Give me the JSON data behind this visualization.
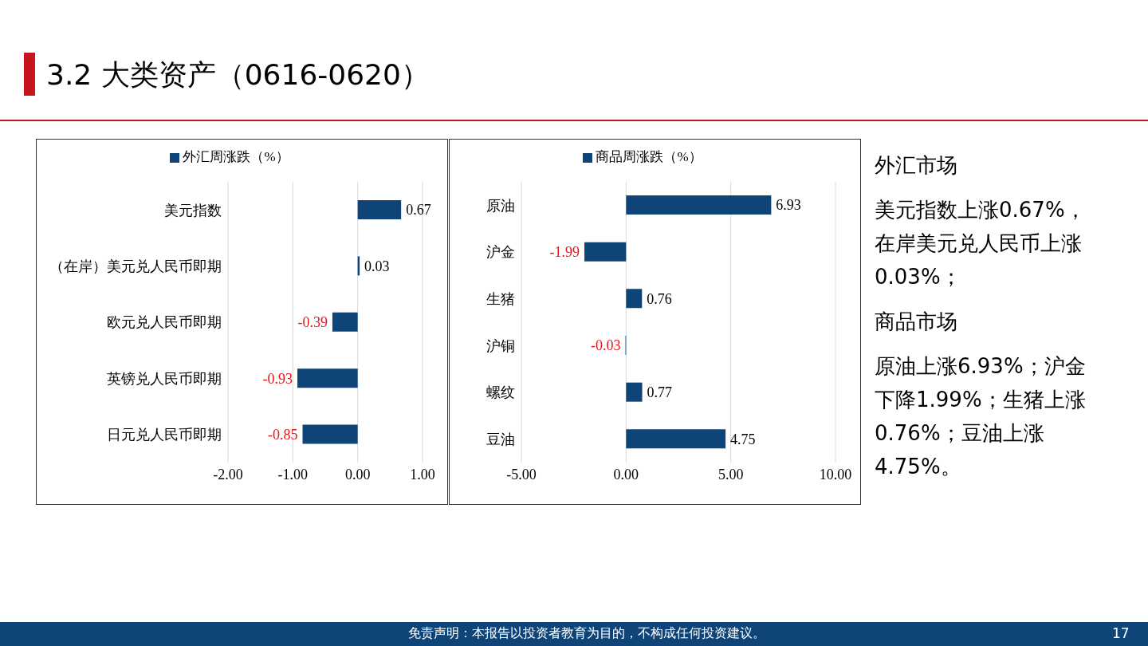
{
  "chart_data": [
    {
      "type": "bar",
      "orientation": "horizontal",
      "categories": [
        "美元指数",
        "（在岸）美元兑人民币即期",
        "欧元兑人民币即期",
        "英镑兑人民币即期",
        "日元兑人民币即期"
      ],
      "series": [
        {
          "name": "外汇周涨跌（%）",
          "color": "#0e4478",
          "values": [
            0.67,
            0.03,
            -0.39,
            -0.93,
            -0.85
          ]
        }
      ],
      "xlim": [
        -2,
        1
      ],
      "xticks": [
        {
          "value": -2,
          "label": "-2.00"
        },
        {
          "value": -1,
          "label": "-1.00"
        },
        {
          "value": 0,
          "label": "0.00"
        },
        {
          "value": 1,
          "label": "1.00"
        }
      ],
      "grid": "x",
      "legend": "top",
      "data_labels": true
    },
    {
      "type": "bar",
      "orientation": "horizontal",
      "categories": [
        "原油",
        "沪金",
        "生猪",
        "沪铜",
        "螺纹",
        "豆油"
      ],
      "series": [
        {
          "name": "商品周涨跌（%）",
          "color": "#0e4478",
          "values": [
            6.93,
            -1.99,
            0.76,
            -0.03,
            0.77,
            4.75
          ]
        }
      ],
      "xlim": [
        -5,
        10
      ],
      "xticks": [
        {
          "value": -5,
          "label": "-5.00"
        },
        {
          "value": 0,
          "label": "0.00"
        },
        {
          "value": 5,
          "label": "5.00"
        },
        {
          "value": 10,
          "label": "10.00"
        }
      ],
      "grid": "x",
      "legend": "top",
      "data_labels": true
    },
    {
      "type": "other",
      "title": "3.2 大类资产（0616-0620）",
      "annotations": [
        "外汇市场",
        "美元指数上涨0.67%，在岸美元兑人民币上涨0.03%；",
        "商品市场",
        "原油上涨6.93%；沪金下降1.99%；生猪上涨0.76%；豆油上涨4.75%。",
        "免责声明：本报告以投资者教育为目的，不构成任何投资建议。",
        "17"
      ]
    }
  ]
}
